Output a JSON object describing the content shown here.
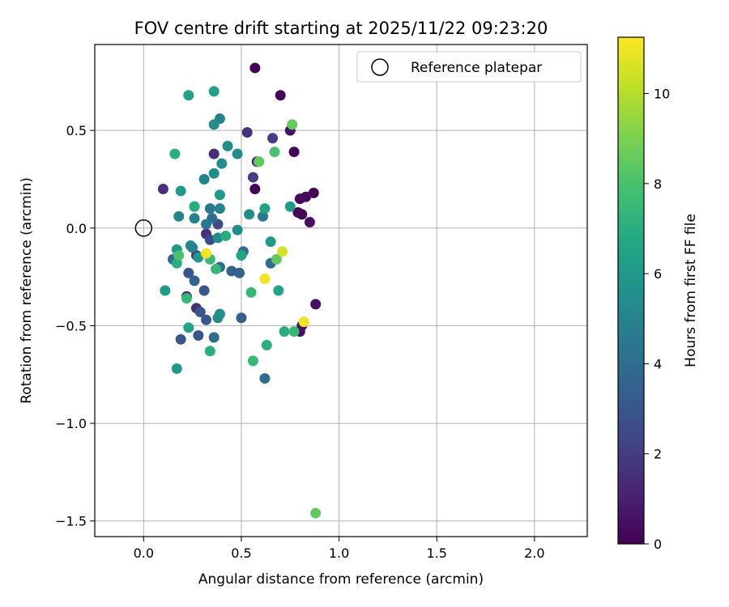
{
  "chart_data": {
    "type": "scatter",
    "title": "FOV centre drift starting at 2025/11/22 09:23:20",
    "xlabel": "Angular distance from reference (arcmin)",
    "ylabel": "Rotation from reference (arcmin)",
    "xlim": [
      -0.25,
      2.27
    ],
    "ylim": [
      -1.58,
      0.94
    ],
    "xticks": [
      0.0,
      0.5,
      1.0,
      1.5,
      2.0
    ],
    "yticks": [
      -1.5,
      -1.0,
      -0.5,
      0.0,
      0.5
    ],
    "xtick_labels": [
      "0.0",
      "0.5",
      "1.0",
      "1.5",
      "2.0"
    ],
    "ytick_labels": [
      "−1.5",
      "−1.0",
      "−0.5",
      "0.0",
      "0.5"
    ],
    "grid": true,
    "legend": {
      "placement": "top-right",
      "label": "Reference platepar"
    },
    "reference_point": {
      "x": 0.0,
      "y": 0.0
    },
    "colorbar": {
      "label": "Hours from first FF file",
      "colormap": "viridis",
      "range": [
        0,
        11.25
      ],
      "ticks": [
        0,
        2,
        4,
        6,
        8,
        10
      ],
      "tick_labels": [
        "0",
        "2",
        "4",
        "6",
        "8",
        "10"
      ]
    },
    "points": [
      {
        "x": 0.57,
        "y": 0.82,
        "c": 0.1
      },
      {
        "x": 0.7,
        "y": 0.68,
        "c": 0.1
      },
      {
        "x": 0.77,
        "y": 0.39,
        "c": 0.1
      },
      {
        "x": 0.75,
        "y": 0.5,
        "c": 0.5
      },
      {
        "x": 0.57,
        "y": 0.2,
        "c": 0.1
      },
      {
        "x": 0.87,
        "y": 0.18,
        "c": 0.1
      },
      {
        "x": 0.83,
        "y": 0.16,
        "c": 0.1
      },
      {
        "x": 0.8,
        "y": 0.15,
        "c": 0.3
      },
      {
        "x": 0.79,
        "y": 0.08,
        "c": 0.1
      },
      {
        "x": 0.81,
        "y": 0.07,
        "c": 0.1
      },
      {
        "x": 0.85,
        "y": 0.03,
        "c": 0.5
      },
      {
        "x": 0.88,
        "y": -0.39,
        "c": 0.5
      },
      {
        "x": 0.81,
        "y": -0.5,
        "c": 0.5
      },
      {
        "x": 0.8,
        "y": -0.53,
        "c": 0.5
      },
      {
        "x": 0.1,
        "y": 0.2,
        "c": 1.5
      },
      {
        "x": 0.36,
        "y": 0.38,
        "c": 1.5
      },
      {
        "x": 0.53,
        "y": 0.49,
        "c": 1.5
      },
      {
        "x": 0.56,
        "y": 0.26,
        "c": 2.0
      },
      {
        "x": 0.58,
        "y": 0.34,
        "c": 1.0
      },
      {
        "x": 0.66,
        "y": 0.46,
        "c": 2.0
      },
      {
        "x": 0.32,
        "y": -0.03,
        "c": 1.5
      },
      {
        "x": 0.27,
        "y": -0.14,
        "c": 1.5
      },
      {
        "x": 0.22,
        "y": -0.35,
        "c": 1.5
      },
      {
        "x": 0.27,
        "y": -0.41,
        "c": 1.5
      },
      {
        "x": 0.34,
        "y": -0.06,
        "c": 2.5
      },
      {
        "x": 0.38,
        "y": 0.02,
        "c": 2.5
      },
      {
        "x": 0.19,
        "y": -0.57,
        "c": 3.0
      },
      {
        "x": 0.28,
        "y": -0.55,
        "c": 3.0
      },
      {
        "x": 0.29,
        "y": -0.43,
        "c": 3.0
      },
      {
        "x": 0.32,
        "y": -0.47,
        "c": 3.0
      },
      {
        "x": 0.23,
        "y": -0.23,
        "c": 3.0
      },
      {
        "x": 0.26,
        "y": -0.27,
        "c": 3.5
      },
      {
        "x": 0.31,
        "y": -0.32,
        "c": 3.0
      },
      {
        "x": 0.45,
        "y": -0.22,
        "c": 3.5
      },
      {
        "x": 0.49,
        "y": -0.23,
        "c": 3.5
      },
      {
        "x": 0.5,
        "y": -0.46,
        "c": 3.5
      },
      {
        "x": 0.62,
        "y": -0.77,
        "c": 4.0
      },
      {
        "x": 0.36,
        "y": -0.56,
        "c": 4.0
      },
      {
        "x": 0.15,
        "y": -0.16,
        "c": 4.0
      },
      {
        "x": 0.35,
        "y": 0.05,
        "c": 4.0
      },
      {
        "x": 0.34,
        "y": 0.1,
        "c": 4.5
      },
      {
        "x": 0.32,
        "y": 0.02,
        "c": 4.5
      },
      {
        "x": 0.39,
        "y": -0.2,
        "c": 4.0
      },
      {
        "x": 0.51,
        "y": -0.12,
        "c": 4.0
      },
      {
        "x": 0.61,
        "y": 0.06,
        "c": 4.5
      },
      {
        "x": 0.65,
        "y": -0.18,
        "c": 4.0
      },
      {
        "x": 0.39,
        "y": 0.56,
        "c": 5.0
      },
      {
        "x": 0.36,
        "y": 0.53,
        "c": 5.5
      },
      {
        "x": 0.31,
        "y": 0.25,
        "c": 5.0
      },
      {
        "x": 0.4,
        "y": 0.33,
        "c": 5.5
      },
      {
        "x": 0.43,
        "y": 0.42,
        "c": 5.5
      },
      {
        "x": 0.48,
        "y": 0.38,
        "c": 5.5
      },
      {
        "x": 0.36,
        "y": 0.28,
        "c": 5.5
      },
      {
        "x": 0.18,
        "y": 0.06,
        "c": 5.0
      },
      {
        "x": 0.26,
        "y": 0.05,
        "c": 5.0
      },
      {
        "x": 0.39,
        "y": 0.1,
        "c": 5.0
      },
      {
        "x": 0.48,
        "y": -0.01,
        "c": 5.5
      },
      {
        "x": 0.54,
        "y": 0.07,
        "c": 5.5
      },
      {
        "x": 0.24,
        "y": -0.09,
        "c": 5.5
      },
      {
        "x": 0.25,
        "y": -0.1,
        "c": 5.0
      },
      {
        "x": 0.38,
        "y": -0.05,
        "c": 5.5
      },
      {
        "x": 0.38,
        "y": -0.46,
        "c": 5.5
      },
      {
        "x": 0.39,
        "y": -0.44,
        "c": 5.5
      },
      {
        "x": 0.36,
        "y": 0.7,
        "c": 6.5
      },
      {
        "x": 0.23,
        "y": 0.68,
        "c": 6.5
      },
      {
        "x": 0.39,
        "y": 0.17,
        "c": 6.0
      },
      {
        "x": 0.19,
        "y": 0.19,
        "c": 6.0
      },
      {
        "x": 0.26,
        "y": 0.11,
        "c": 6.0
      },
      {
        "x": 0.62,
        "y": 0.1,
        "c": 6.5
      },
      {
        "x": 0.75,
        "y": 0.11,
        "c": 6.0
      },
      {
        "x": 0.65,
        "y": -0.07,
        "c": 6.0
      },
      {
        "x": 0.17,
        "y": -0.11,
        "c": 6.0
      },
      {
        "x": 0.28,
        "y": -0.15,
        "c": 6.0
      },
      {
        "x": 0.11,
        "y": -0.32,
        "c": 6.0
      },
      {
        "x": 0.17,
        "y": -0.72,
        "c": 6.0
      },
      {
        "x": 0.23,
        "y": -0.51,
        "c": 6.5
      },
      {
        "x": 0.69,
        "y": -0.32,
        "c": 6.5
      },
      {
        "x": 0.5,
        "y": -0.14,
        "c": 6.5
      },
      {
        "x": 0.34,
        "y": -0.63,
        "c": 7.0
      },
      {
        "x": 0.16,
        "y": 0.38,
        "c": 7.0
      },
      {
        "x": 0.26,
        "y": 0.11,
        "c": 7.0
      },
      {
        "x": 0.42,
        "y": -0.04,
        "c": 7.0
      },
      {
        "x": 0.37,
        "y": -0.21,
        "c": 7.5
      },
      {
        "x": 0.34,
        "y": -0.16,
        "c": 7.5
      },
      {
        "x": 0.22,
        "y": -0.36,
        "c": 7.5
      },
      {
        "x": 0.17,
        "y": -0.18,
        "c": 7.0
      },
      {
        "x": 0.55,
        "y": -0.33,
        "c": 7.5
      },
      {
        "x": 0.63,
        "y": -0.6,
        "c": 7.0
      },
      {
        "x": 0.56,
        "y": -0.68,
        "c": 7.5
      },
      {
        "x": 0.72,
        "y": -0.53,
        "c": 7.0
      },
      {
        "x": 0.77,
        "y": -0.53,
        "c": 7.5
      },
      {
        "x": 0.18,
        "y": -0.14,
        "c": 8.0
      },
      {
        "x": 0.67,
        "y": 0.39,
        "c": 8.0
      },
      {
        "x": 0.59,
        "y": 0.34,
        "c": 8.5
      },
      {
        "x": 0.76,
        "y": 0.53,
        "c": 8.5
      },
      {
        "x": 0.68,
        "y": -0.16,
        "c": 8.5
      },
      {
        "x": 0.88,
        "y": -1.46,
        "c": 8.5
      },
      {
        "x": 0.32,
        "y": -0.13,
        "c": 11.0
      },
      {
        "x": 0.62,
        "y": -0.26,
        "c": 11.0
      },
      {
        "x": 0.71,
        "y": -0.12,
        "c": 10.5
      },
      {
        "x": 0.82,
        "y": -0.48,
        "c": 11.0
      }
    ]
  }
}
